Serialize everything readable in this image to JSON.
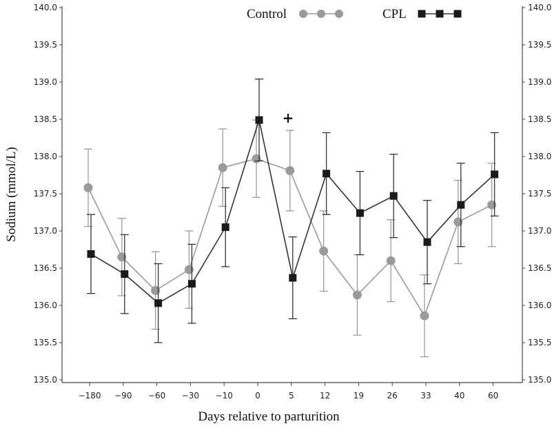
{
  "chart_data": {
    "type": "line",
    "xlabel": "Days relative to parturition",
    "ylabel": "Sodium (mmol/L)",
    "categories": [
      "−180",
      "−90",
      "−60",
      "−30",
      "−10",
      "0",
      "5",
      "12",
      "19",
      "26",
      "33",
      "40",
      "60"
    ],
    "ylim": [
      135.0,
      140.0
    ],
    "yticks": [
      "135.0",
      "135.5",
      "136.0",
      "136.5",
      "137.0",
      "137.5",
      "138.0",
      "138.5",
      "139.0",
      "139.5",
      "140.0"
    ],
    "legend_position": "top",
    "significance_marker": {
      "category_index": 6,
      "symbol": "+"
    },
    "series": [
      {
        "name": "Control",
        "color": "#9a9a9a",
        "marker": "circle",
        "values": [
          137.58,
          136.65,
          136.2,
          136.48,
          137.85,
          137.97,
          137.81,
          136.73,
          136.14,
          136.6,
          135.86,
          137.12,
          137.35
        ],
        "error": [
          0.52,
          0.52,
          0.52,
          0.52,
          0.52,
          0.52,
          0.54,
          0.54,
          0.54,
          0.55,
          0.55,
          0.56,
          0.56
        ]
      },
      {
        "name": "CPL",
        "color": "#333333",
        "marker": "square",
        "values": [
          136.69,
          136.42,
          136.03,
          136.29,
          137.05,
          138.49,
          136.37,
          137.77,
          137.24,
          137.47,
          136.85,
          137.35,
          137.76
        ],
        "error": [
          0.53,
          0.53,
          0.53,
          0.53,
          0.53,
          0.55,
          0.55,
          0.55,
          0.56,
          0.56,
          0.56,
          0.56,
          0.56
        ]
      }
    ]
  }
}
